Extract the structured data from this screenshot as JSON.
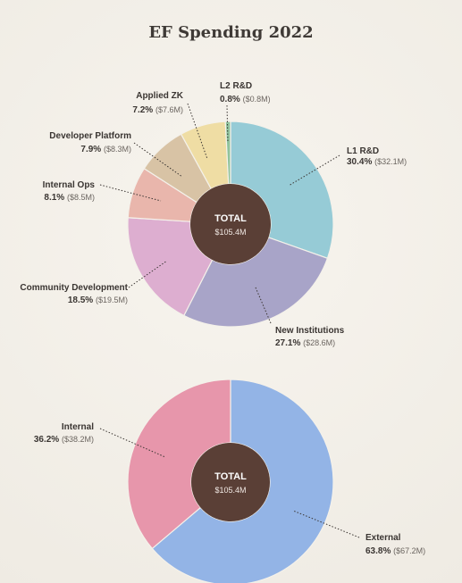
{
  "title": "EF Spending 2022",
  "chart_data": [
    {
      "type": "pie",
      "variant": "donut",
      "center": {
        "label": "TOTAL",
        "value": "$105.4M"
      },
      "unit": "USD millions",
      "slices": [
        {
          "name": "L1 R&D",
          "percent": 30.4,
          "pct_label": "30.4%",
          "amount_label": "($32.1M)",
          "value": 32.1,
          "color": "#96cbd6"
        },
        {
          "name": "New Institutions",
          "percent": 27.1,
          "pct_label": "27.1%",
          "amount_label": "($28.6M)",
          "value": 28.6,
          "color": "#a8a4c8"
        },
        {
          "name": "Community Development",
          "percent": 18.5,
          "pct_label": "18.5%",
          "amount_label": "($19.5M)",
          "value": 19.5,
          "color": "#ddaed0"
        },
        {
          "name": "Internal Ops",
          "percent": 8.1,
          "pct_label": "8.1%",
          "amount_label": "($8.5M)",
          "value": 8.5,
          "color": "#e9b6ac"
        },
        {
          "name": "Developer Platform",
          "percent": 7.9,
          "pct_label": "7.9%",
          "amount_label": "($8.3M)",
          "value": 8.3,
          "color": "#d8c3a5"
        },
        {
          "name": "Applied ZK",
          "percent": 7.2,
          "pct_label": "7.2%",
          "amount_label": "($7.6M)",
          "value": 7.6,
          "color": "#efdda4"
        },
        {
          "name": "L2 R&D",
          "percent": 0.8,
          "pct_label": "0.8%",
          "amount_label": "($0.8M)",
          "value": 0.8,
          "color": "#8fc39c"
        }
      ]
    },
    {
      "type": "pie",
      "variant": "donut",
      "center": {
        "label": "TOTAL",
        "value": "$105.4M"
      },
      "unit": "USD millions",
      "slices": [
        {
          "name": "External",
          "percent": 63.8,
          "pct_label": "63.8%",
          "amount_label": "($67.2M)",
          "value": 67.2,
          "color": "#93b4e6"
        },
        {
          "name": "Internal",
          "percent": 36.2,
          "pct_label": "36.2%",
          "amount_label": "($38.2M)",
          "value": 38.2,
          "color": "#e796ab"
        }
      ]
    }
  ]
}
